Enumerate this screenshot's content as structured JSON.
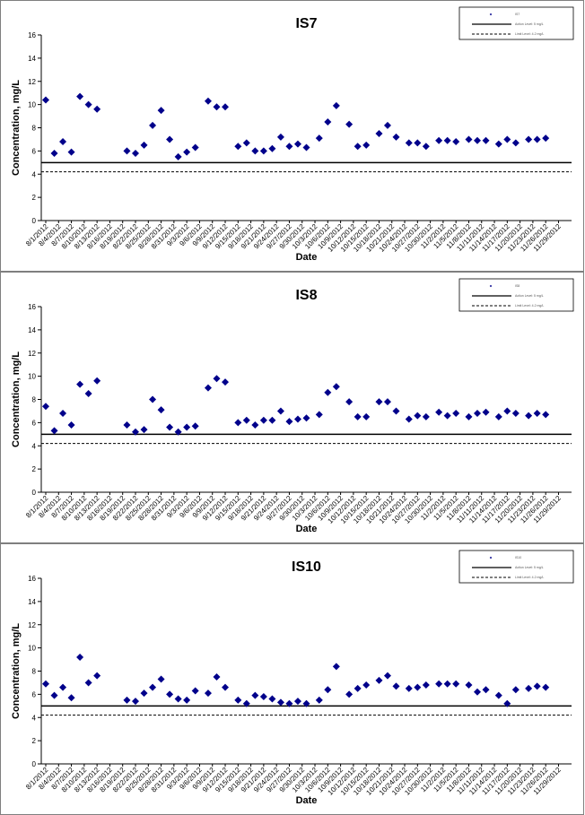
{
  "chart_data": [
    {
      "type": "scatter",
      "title": "IS7",
      "xlabel": "Date",
      "ylabel": "Concentration, mg/L",
      "ylim": [
        0,
        16
      ],
      "yticks": [
        0,
        2,
        4,
        6,
        8,
        10,
        12,
        14,
        16
      ],
      "xticks": [
        "8/1/2012",
        "8/4/2012",
        "8/7/2012",
        "8/10/2012",
        "8/13/2012",
        "8/16/2012",
        "8/19/2012",
        "8/22/2012",
        "8/25/2012",
        "8/28/2012",
        "8/31/2012",
        "9/3/2012",
        "9/6/2012",
        "9/9/2012",
        "9/12/2012",
        "9/15/2012",
        "9/18/2012",
        "9/21/2012",
        "9/24/2012",
        "9/27/2012",
        "9/30/2012",
        "10/3/2012",
        "10/6/2012",
        "10/9/2012",
        "10/12/2012",
        "10/15/2012",
        "10/18/2012",
        "10/21/2012",
        "10/24/2012",
        "10/27/2012",
        "10/30/2012",
        "11/2/2012",
        "11/5/2012",
        "11/8/2012",
        "11/11/2012",
        "11/14/2012",
        "11/17/2012",
        "11/20/2012",
        "11/23/2012",
        "11/26/2012",
        "11/29/2012"
      ],
      "grid": false,
      "legend_position": "top-right",
      "legend": [
        "IS7",
        "Action Level: 5 mg/L",
        "Limit Level: 4.2 mg/L"
      ],
      "lines": [
        {
          "name": "Action Level: 5 mg/L",
          "y": 5.0,
          "style": "solid"
        },
        {
          "name": "Limit Level: 4.2 mg/L",
          "y": 4.2,
          "style": "dashed"
        }
      ],
      "series": [
        {
          "name": "IS7",
          "points": [
            {
              "x": "8/1/2012",
              "y": 10.4
            },
            {
              "x": "8/3/2012",
              "y": 5.8
            },
            {
              "x": "8/5/2012",
              "y": 6.8
            },
            {
              "x": "8/7/2012",
              "y": 5.9
            },
            {
              "x": "8/9/2012",
              "y": 10.7
            },
            {
              "x": "8/11/2012",
              "y": 10.0
            },
            {
              "x": "8/13/2012",
              "y": 9.6
            },
            {
              "x": "8/20/2012",
              "y": 6.0
            },
            {
              "x": "8/22/2012",
              "y": 5.8
            },
            {
              "x": "8/24/2012",
              "y": 6.5
            },
            {
              "x": "8/26/2012",
              "y": 8.2
            },
            {
              "x": "8/28/2012",
              "y": 9.5
            },
            {
              "x": "8/30/2012",
              "y": 7.0
            },
            {
              "x": "9/1/2012",
              "y": 5.5
            },
            {
              "x": "9/3/2012",
              "y": 5.9
            },
            {
              "x": "9/5/2012",
              "y": 6.3
            },
            {
              "x": "9/8/2012",
              "y": 10.3
            },
            {
              "x": "9/10/2012",
              "y": 9.8
            },
            {
              "x": "9/12/2012",
              "y": 9.8
            },
            {
              "x": "9/15/2012",
              "y": 6.4
            },
            {
              "x": "9/17/2012",
              "y": 6.7
            },
            {
              "x": "9/19/2012",
              "y": 6.0
            },
            {
              "x": "9/21/2012",
              "y": 6.0
            },
            {
              "x": "9/23/2012",
              "y": 6.2
            },
            {
              "x": "9/25/2012",
              "y": 7.2
            },
            {
              "x": "9/27/2012",
              "y": 6.4
            },
            {
              "x": "9/29/2012",
              "y": 6.6
            },
            {
              "x": "10/1/2012",
              "y": 6.3
            },
            {
              "x": "10/4/2012",
              "y": 7.1
            },
            {
              "x": "10/6/2012",
              "y": 8.5
            },
            {
              "x": "10/8/2012",
              "y": 9.9
            },
            {
              "x": "10/11/2012",
              "y": 8.3
            },
            {
              "x": "10/13/2012",
              "y": 6.4
            },
            {
              "x": "10/15/2012",
              "y": 6.5
            },
            {
              "x": "10/18/2012",
              "y": 7.5
            },
            {
              "x": "10/20/2012",
              "y": 8.2
            },
            {
              "x": "10/22/2012",
              "y": 7.2
            },
            {
              "x": "10/25/2012",
              "y": 6.7
            },
            {
              "x": "10/27/2012",
              "y": 6.7
            },
            {
              "x": "10/29/2012",
              "y": 6.4
            },
            {
              "x": "11/1/2012",
              "y": 6.9
            },
            {
              "x": "11/3/2012",
              "y": 6.9
            },
            {
              "x": "11/5/2012",
              "y": 6.8
            },
            {
              "x": "11/8/2012",
              "y": 7.0
            },
            {
              "x": "11/10/2012",
              "y": 6.9
            },
            {
              "x": "11/12/2012",
              "y": 6.9
            },
            {
              "x": "11/15/2012",
              "y": 6.6
            },
            {
              "x": "11/17/2012",
              "y": 7.0
            },
            {
              "x": "11/19/2012",
              "y": 6.7
            },
            {
              "x": "11/22/2012",
              "y": 7.0
            },
            {
              "x": "11/24/2012",
              "y": 7.0
            },
            {
              "x": "11/26/2012",
              "y": 7.1
            }
          ]
        }
      ]
    },
    {
      "type": "scatter",
      "title": "IS8",
      "xlabel": "Date",
      "ylabel": "Concentration, mg/L",
      "ylim": [
        0,
        16
      ],
      "yticks": [
        0,
        2,
        4,
        6,
        8,
        10,
        12,
        14,
        16
      ],
      "xticks": [
        "8/1/2012",
        "8/4/2012",
        "8/7/2012",
        "8/10/2012",
        "8/13/2012",
        "8/16/2012",
        "8/19/2012",
        "8/22/2012",
        "8/25/2012",
        "8/28/2012",
        "8/31/2012",
        "9/3/2012",
        "9/6/2012",
        "9/9/2012",
        "9/12/2012",
        "9/15/2012",
        "9/18/2012",
        "9/21/2012",
        "9/24/2012",
        "9/27/2012",
        "9/30/2012",
        "10/3/2012",
        "10/6/2012",
        "10/9/2012",
        "10/12/2012",
        "10/15/2012",
        "10/18/2012",
        "10/21/2012",
        "10/24/2012",
        "10/27/2012",
        "10/30/2012",
        "11/2/2012",
        "11/5/2012",
        "11/8/2012",
        "11/11/2012",
        "11/14/2012",
        "11/17/2012",
        "11/20/2012",
        "11/23/2012",
        "11/26/2012",
        "11/29/2012"
      ],
      "grid": false,
      "legend_position": "top-right",
      "legend": [
        "IS8",
        "Action Level: 5 mg/L",
        "Limit Level: 4.2 mg/L"
      ],
      "lines": [
        {
          "name": "Action Level: 5 mg/L",
          "y": 5.0,
          "style": "solid"
        },
        {
          "name": "Limit Level: 4.2 mg/L",
          "y": 4.2,
          "style": "dashed"
        }
      ],
      "series": [
        {
          "name": "IS8",
          "points": [
            {
              "x": "8/1/2012",
              "y": 7.4
            },
            {
              "x": "8/3/2012",
              "y": 5.3
            },
            {
              "x": "8/5/2012",
              "y": 6.8
            },
            {
              "x": "8/7/2012",
              "y": 5.8
            },
            {
              "x": "8/9/2012",
              "y": 9.3
            },
            {
              "x": "8/11/2012",
              "y": 8.5
            },
            {
              "x": "8/13/2012",
              "y": 9.6
            },
            {
              "x": "8/20/2012",
              "y": 5.8
            },
            {
              "x": "8/22/2012",
              "y": 5.2
            },
            {
              "x": "8/24/2012",
              "y": 5.4
            },
            {
              "x": "8/26/2012",
              "y": 8.0
            },
            {
              "x": "8/28/2012",
              "y": 7.1
            },
            {
              "x": "8/30/2012",
              "y": 5.6
            },
            {
              "x": "9/1/2012",
              "y": 5.2
            },
            {
              "x": "9/3/2012",
              "y": 5.6
            },
            {
              "x": "9/5/2012",
              "y": 5.7
            },
            {
              "x": "9/8/2012",
              "y": 9.0
            },
            {
              "x": "9/10/2012",
              "y": 9.8
            },
            {
              "x": "9/12/2012",
              "y": 9.5
            },
            {
              "x": "9/15/2012",
              "y": 6.0
            },
            {
              "x": "9/17/2012",
              "y": 6.2
            },
            {
              "x": "9/19/2012",
              "y": 5.8
            },
            {
              "x": "9/21/2012",
              "y": 6.2
            },
            {
              "x": "9/23/2012",
              "y": 6.2
            },
            {
              "x": "9/25/2012",
              "y": 7.0
            },
            {
              "x": "9/27/2012",
              "y": 6.1
            },
            {
              "x": "9/29/2012",
              "y": 6.3
            },
            {
              "x": "10/1/2012",
              "y": 6.4
            },
            {
              "x": "10/4/2012",
              "y": 6.7
            },
            {
              "x": "10/6/2012",
              "y": 8.6
            },
            {
              "x": "10/8/2012",
              "y": 9.1
            },
            {
              "x": "10/11/2012",
              "y": 7.8
            },
            {
              "x": "10/13/2012",
              "y": 6.5
            },
            {
              "x": "10/15/2012",
              "y": 6.5
            },
            {
              "x": "10/18/2012",
              "y": 7.8
            },
            {
              "x": "10/20/2012",
              "y": 7.8
            },
            {
              "x": "10/22/2012",
              "y": 7.0
            },
            {
              "x": "10/25/2012",
              "y": 6.3
            },
            {
              "x": "10/27/2012",
              "y": 6.6
            },
            {
              "x": "10/29/2012",
              "y": 6.5
            },
            {
              "x": "11/1/2012",
              "y": 6.9
            },
            {
              "x": "11/3/2012",
              "y": 6.6
            },
            {
              "x": "11/5/2012",
              "y": 6.8
            },
            {
              "x": "11/8/2012",
              "y": 6.5
            },
            {
              "x": "11/10/2012",
              "y": 6.8
            },
            {
              "x": "11/12/2012",
              "y": 6.9
            },
            {
              "x": "11/15/2012",
              "y": 6.5
            },
            {
              "x": "11/17/2012",
              "y": 7.0
            },
            {
              "x": "11/19/2012",
              "y": 6.8
            },
            {
              "x": "11/22/2012",
              "y": 6.6
            },
            {
              "x": "11/24/2012",
              "y": 6.8
            },
            {
              "x": "11/26/2012",
              "y": 6.7
            }
          ]
        }
      ]
    },
    {
      "type": "scatter",
      "title": "IS10",
      "xlabel": "Date",
      "ylabel": "Concentration, mg/L",
      "ylim": [
        0,
        16
      ],
      "yticks": [
        0,
        2,
        4,
        6,
        8,
        10,
        12,
        14,
        16
      ],
      "xticks": [
        "8/1/2012",
        "8/4/2012",
        "8/7/2012",
        "8/10/2012",
        "8/13/2012",
        "8/16/2012",
        "8/19/2012",
        "8/22/2012",
        "8/25/2012",
        "8/28/2012",
        "8/31/2012",
        "9/3/2012",
        "9/6/2012",
        "9/9/2012",
        "9/12/2012",
        "9/15/2012",
        "9/18/2012",
        "9/21/2012",
        "9/24/2012",
        "9/27/2012",
        "9/30/2012",
        "10/3/2012",
        "10/6/2012",
        "10/9/2012",
        "10/12/2012",
        "10/15/2012",
        "10/18/2012",
        "10/21/2012",
        "10/24/2012",
        "10/27/2012",
        "10/30/2012",
        "11/2/2012",
        "11/5/2012",
        "11/8/2012",
        "11/11/2012",
        "11/14/2012",
        "11/17/2012",
        "11/20/2012",
        "11/23/2012",
        "11/26/2012",
        "11/29/2012"
      ],
      "grid": false,
      "legend_position": "top-right",
      "legend": [
        "IS10",
        "Action Level: 5 mg/L",
        "Limit Level: 4.2 mg/L"
      ],
      "lines": [
        {
          "name": "Action Level: 5 mg/L",
          "y": 5.0,
          "style": "solid"
        },
        {
          "name": "Limit Level: 4.2 mg/L",
          "y": 4.2,
          "style": "dashed"
        }
      ],
      "series": [
        {
          "name": "IS10",
          "points": [
            {
              "x": "8/1/2012",
              "y": 6.9
            },
            {
              "x": "8/3/2012",
              "y": 5.9
            },
            {
              "x": "8/5/2012",
              "y": 6.6
            },
            {
              "x": "8/7/2012",
              "y": 5.7
            },
            {
              "x": "8/9/2012",
              "y": 9.2
            },
            {
              "x": "8/11/2012",
              "y": 7.0
            },
            {
              "x": "8/13/2012",
              "y": 7.6
            },
            {
              "x": "8/20/2012",
              "y": 5.5
            },
            {
              "x": "8/22/2012",
              "y": 5.4
            },
            {
              "x": "8/24/2012",
              "y": 6.1
            },
            {
              "x": "8/26/2012",
              "y": 6.6
            },
            {
              "x": "8/28/2012",
              "y": 7.3
            },
            {
              "x": "8/30/2012",
              "y": 6.0
            },
            {
              "x": "9/1/2012",
              "y": 5.6
            },
            {
              "x": "9/3/2012",
              "y": 5.5
            },
            {
              "x": "9/5/2012",
              "y": 6.3
            },
            {
              "x": "9/8/2012",
              "y": 6.1
            },
            {
              "x": "9/10/2012",
              "y": 7.5
            },
            {
              "x": "9/12/2012",
              "y": 6.6
            },
            {
              "x": "9/15/2012",
              "y": 5.5
            },
            {
              "x": "9/17/2012",
              "y": 5.2
            },
            {
              "x": "9/19/2012",
              "y": 5.9
            },
            {
              "x": "9/21/2012",
              "y": 5.8
            },
            {
              "x": "9/23/2012",
              "y": 5.6
            },
            {
              "x": "9/25/2012",
              "y": 5.3
            },
            {
              "x": "9/27/2012",
              "y": 5.2
            },
            {
              "x": "9/29/2012",
              "y": 5.4
            },
            {
              "x": "10/1/2012",
              "y": 5.2
            },
            {
              "x": "10/4/2012",
              "y": 5.5
            },
            {
              "x": "10/6/2012",
              "y": 6.4
            },
            {
              "x": "10/8/2012",
              "y": 8.4
            },
            {
              "x": "10/11/2012",
              "y": 6.0
            },
            {
              "x": "10/13/2012",
              "y": 6.5
            },
            {
              "x": "10/15/2012",
              "y": 6.8
            },
            {
              "x": "10/18/2012",
              "y": 7.2
            },
            {
              "x": "10/20/2012",
              "y": 7.6
            },
            {
              "x": "10/22/2012",
              "y": 6.7
            },
            {
              "x": "10/25/2012",
              "y": 6.5
            },
            {
              "x": "10/27/2012",
              "y": 6.6
            },
            {
              "x": "10/29/2012",
              "y": 6.8
            },
            {
              "x": "11/1/2012",
              "y": 6.9
            },
            {
              "x": "11/3/2012",
              "y": 6.9
            },
            {
              "x": "11/5/2012",
              "y": 6.9
            },
            {
              "x": "11/8/2012",
              "y": 6.8
            },
            {
              "x": "11/10/2012",
              "y": 6.2
            },
            {
              "x": "11/12/2012",
              "y": 6.4
            },
            {
              "x": "11/15/2012",
              "y": 5.9
            },
            {
              "x": "11/17/2012",
              "y": 5.2
            },
            {
              "x": "11/19/2012",
              "y": 6.4
            },
            {
              "x": "11/22/2012",
              "y": 6.5
            },
            {
              "x": "11/24/2012",
              "y": 6.7
            },
            {
              "x": "11/26/2012",
              "y": 6.6
            }
          ]
        }
      ]
    }
  ],
  "colors": {
    "marker": "#00008b",
    "axis": "#000000",
    "reference_lines": "#000000",
    "panel_border": "#7f7f7f"
  }
}
